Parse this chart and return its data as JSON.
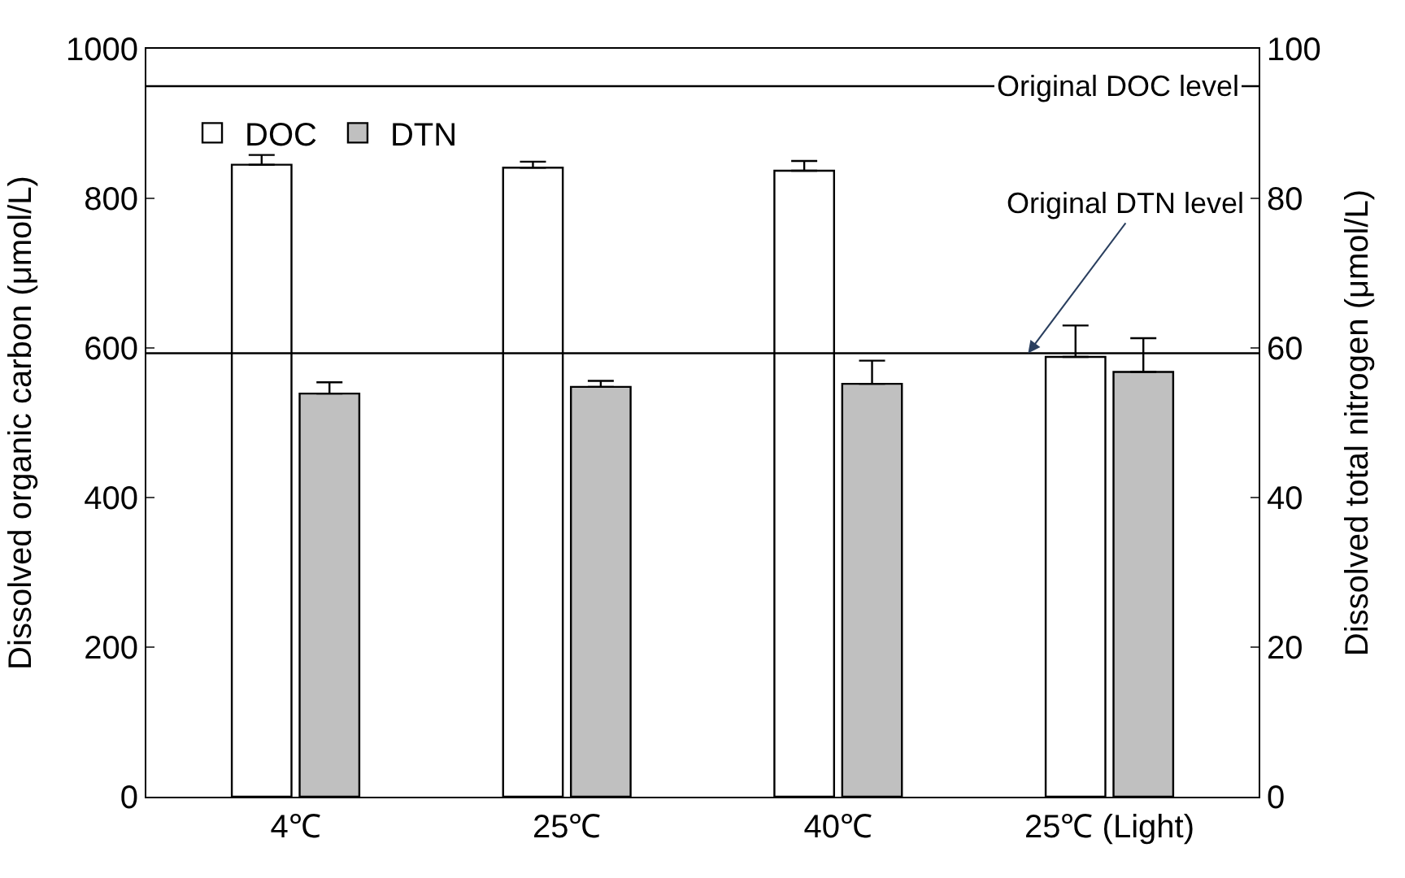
{
  "chart_data": {
    "type": "bar",
    "categories": [
      "4℃",
      "25℃",
      "40℃",
      "25℃ (Light)"
    ],
    "ylabel": "Dissolved organic carbon (μmol/L)",
    "y2label": "Dissolved total nitrogen (μmol/L)",
    "ylim": [
      0,
      1000
    ],
    "yticks": [
      0,
      200,
      400,
      600,
      800,
      1000
    ],
    "y2lim": [
      0,
      100
    ],
    "y2ticks": [
      0,
      20,
      40,
      60,
      80,
      100
    ],
    "series": [
      {
        "name": "DOC",
        "color": "#ffffff",
        "values": [
          845,
          841,
          837,
          588
        ],
        "errors": [
          [
            845,
            858
          ],
          [
            841,
            849
          ],
          [
            837,
            850
          ],
          [
            588,
            630
          ]
        ]
      },
      {
        "name": "DTN",
        "color": "#c0c0c0",
        "axis": "y2",
        "values": [
          53.9,
          54.8,
          55.2,
          56.8
        ],
        "errors": [
          [
            53.9,
            55.4
          ],
          [
            54.8,
            55.6
          ],
          [
            55.2,
            58.3
          ],
          [
            56.8,
            61.3
          ]
        ]
      }
    ],
    "ref_lines": [
      {
        "axis": "y",
        "value": 950,
        "label": "Original DOC level"
      },
      {
        "axis": "y2",
        "value": 59.3,
        "label": "Original DTN level"
      }
    ],
    "legend": "top left",
    "grid": false
  }
}
